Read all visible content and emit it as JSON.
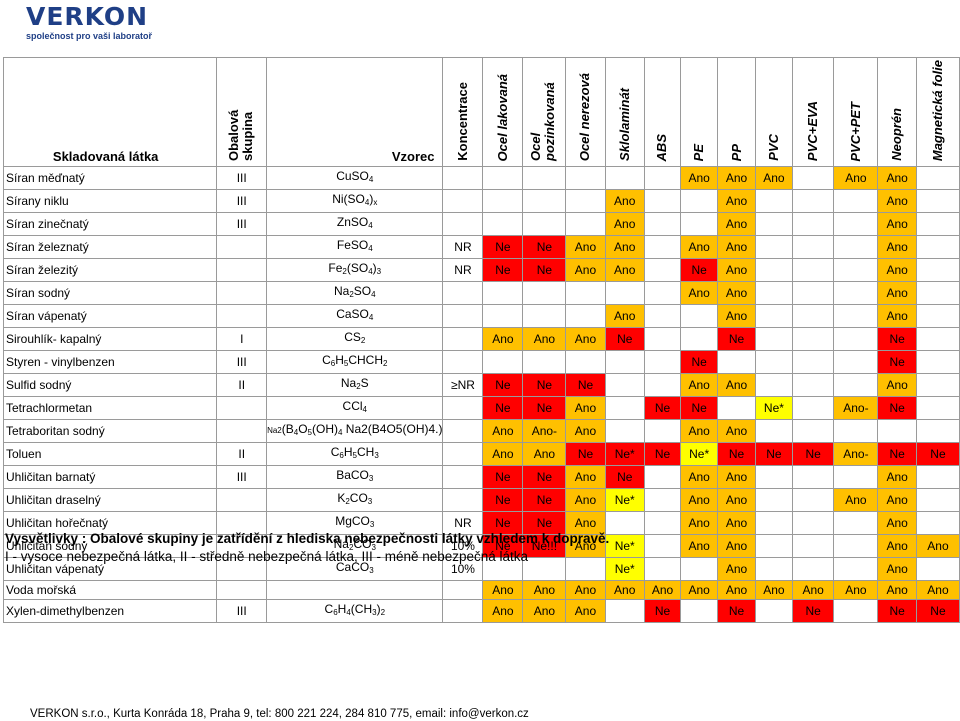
{
  "logo": {
    "name": "VERKON",
    "tagline": "společnost pro vaši laboratoř"
  },
  "headers": {
    "substance": "Skladovaná látka",
    "group": "Obalová skupina",
    "formula": "Vzorec",
    "conc": "Koncentrace",
    "materials": [
      "Ocel lakovaná",
      "Ocel pozinkovaná",
      "Ocel nerezová",
      "Sklolaminát",
      "ABS",
      "PE",
      "PP",
      "PVC",
      "PVC+EVA",
      "PVC+PET",
      "Neoprén",
      "Magnetická folie"
    ]
  },
  "rows": [
    {
      "name": "Síran měďnatý",
      "group": "III",
      "formula": "CuSO<sub>4</sub>",
      "conc": "",
      "cells": [
        "",
        "",
        "",
        "",
        "",
        "Ano",
        "Ano",
        "Ano",
        "",
        "Ano",
        "Ano",
        ""
      ]
    },
    {
      "name": "Sírany niklu",
      "group": "III",
      "formula": "Ni(SO<sub>4</sub>)<sub>x</sub>",
      "conc": "",
      "cells": [
        "",
        "",
        "",
        "Ano",
        "",
        "",
        "Ano",
        "",
        "",
        "",
        "Ano",
        ""
      ]
    },
    {
      "name": "Síran zinečnatý",
      "group": "III",
      "formula": "ZnSO<sub>4</sub>",
      "conc": "",
      "cells": [
        "",
        "",
        "",
        "Ano",
        "",
        "",
        "Ano",
        "",
        "",
        "",
        "Ano",
        ""
      ]
    },
    {
      "name": "Síran železnatý",
      "group": "",
      "formula": "FeSO<sub>4</sub>",
      "conc": "NR",
      "cells": [
        "Ne",
        "Ne",
        "Ano",
        "Ano",
        "",
        "Ano",
        "Ano",
        "",
        "",
        "",
        "Ano",
        ""
      ]
    },
    {
      "name": "Síran železitý",
      "group": "",
      "formula": "Fe<sub>2</sub>(SO<sub>4</sub>)<sub>3</sub>",
      "conc": "NR",
      "cells": [
        "Ne",
        "Ne",
        "Ano",
        "Ano",
        "",
        "Ne",
        "Ano",
        "",
        "",
        "",
        "Ano",
        ""
      ]
    },
    {
      "name": "Síran sodný",
      "group": "",
      "formula": "Na<sub>2</sub>SO<sub>4</sub>",
      "conc": "",
      "cells": [
        "",
        "",
        "",
        "",
        "",
        "Ano",
        "Ano",
        "",
        "",
        "",
        "Ano",
        ""
      ]
    },
    {
      "name": "Síran vápenatý",
      "group": "",
      "formula": "CaSO<sub>4</sub>",
      "conc": "",
      "cells": [
        "",
        "",
        "",
        "Ano",
        "",
        "",
        "Ano",
        "",
        "",
        "",
        "Ano",
        ""
      ]
    },
    {
      "name": "Sirouhlík- kapalný",
      "group": "I",
      "formula": "CS<sub>2</sub>",
      "conc": "",
      "cells": [
        "Ano",
        "Ano",
        "Ano",
        "Ne",
        "",
        "",
        "Ne",
        "",
        "",
        "",
        "Ne",
        ""
      ]
    },
    {
      "name": "Styren - vinylbenzen",
      "group": "III",
      "formula": "C<sub>6</sub>H<sub>5</sub>CHCH<sub>2</sub>",
      "conc": "",
      "cells": [
        "",
        "",
        "",
        "",
        "",
        "Ne",
        "",
        "",
        "",
        "",
        "Ne",
        ""
      ]
    },
    {
      "name": "Sulfid sodný",
      "group": "II",
      "formula": "Na<sub>2</sub>S",
      "conc": "≥NR",
      "cells": [
        "Ne",
        "Ne",
        "Ne",
        "",
        "",
        "Ano",
        "Ano",
        "",
        "",
        "",
        "Ano",
        ""
      ]
    },
    {
      "name": "Tetrachlormetan",
      "group": "",
      "formula": "CCl<sub>4</sub>",
      "conc": "",
      "cells": [
        "Ne",
        "Ne",
        "Ano",
        "",
        "Ne",
        "Ne",
        "",
        "Ne*",
        "",
        "Ano-",
        "Ne",
        ""
      ]
    },
    {
      "name": "Tetraboritan sodný",
      "group": "",
      "formula": "<span style='font-size:8px'>Na2</span>(B<sub>4</sub>O<sub>5</sub>(OH)<sub>4</sub> Na2(B4O5(OH)4.)",
      "conc": "",
      "cells": [
        "Ano",
        "Ano-",
        "Ano",
        "",
        "",
        "Ano",
        "Ano",
        "",
        "",
        "",
        "",
        ""
      ]
    },
    {
      "name": "Toluen",
      "group": "II",
      "formula": "C<sub>6</sub>H<sub>5</sub>CH<sub>3</sub>",
      "conc": "",
      "cells": [
        "Ano",
        "Ano",
        "Ne",
        "Ne*",
        "Ne",
        "Ne*",
        "Ne",
        "Ne",
        "Ne",
        "Ano-",
        "Ne",
        "Ne"
      ]
    },
    {
      "name": "Uhličitan barnatý",
      "group": "III",
      "formula": "BaCO<sub>3</sub>",
      "conc": "",
      "cells": [
        "Ne",
        "Ne",
        "Ano",
        "Ne",
        "",
        "Ano",
        "Ano",
        "",
        "",
        "",
        "Ano",
        ""
      ]
    },
    {
      "name": "Uhličitan draselný",
      "group": "",
      "formula": "K<sub>2</sub>CO<sub>3</sub>",
      "conc": "",
      "cells": [
        "Ne",
        "Ne",
        "Ano",
        "Ne*",
        "",
        "Ano",
        "Ano",
        "",
        "",
        "Ano",
        "Ano",
        ""
      ]
    },
    {
      "name": "Uhličitan hořečnatý",
      "group": "",
      "formula": "MgCO<sub>3</sub>",
      "conc": "NR",
      "cells": [
        "Ne",
        "Ne",
        "Ano",
        "",
        "",
        "Ano",
        "Ano",
        "",
        "",
        "",
        "Ano",
        ""
      ]
    },
    {
      "name": "Uhličitan sodný",
      "group": "",
      "formula": "Na<sub>2</sub>CO<sub>3</sub>",
      "conc": "10%",
      "cells": [
        "Ne",
        "Ne!!!",
        "Ano",
        "Ne*",
        "",
        "Ano",
        "Ano",
        "",
        "",
        "",
        "Ano",
        "Ano"
      ]
    },
    {
      "name": "Uhličitan vápenatý",
      "group": "",
      "formula": "CaCO<sub>3</sub>",
      "conc": "10%",
      "cells": [
        "",
        "",
        "",
        "Ne*",
        "",
        "",
        "Ano",
        "",
        "",
        "",
        "Ano",
        ""
      ]
    },
    {
      "name": "Voda mořská",
      "group": "",
      "formula": "",
      "conc": "",
      "cells": [
        "Ano",
        "Ano",
        "Ano",
        "Ano",
        "Ano",
        "Ano",
        "Ano",
        "Ano",
        "Ano",
        "Ano",
        "Ano",
        "Ano"
      ]
    },
    {
      "name": "Xylen-dimethylbenzen",
      "group": "III",
      "formula": "C<sub>6</sub>H<sub>4</sub>(CH<sub>3</sub>)<sub>2</sub>",
      "conc": "",
      "cells": [
        "Ano",
        "Ano",
        "Ano",
        "",
        "Ne",
        "",
        "Ne",
        "",
        "Ne",
        "",
        "Ne",
        "Ne"
      ]
    }
  ],
  "legend1": "Vysvětlivky : Obalové skupiny je zatřídění z hlediska nebezpečnosti látky vzhledem k dopravě.",
  "legend2": "I - vysoce nebezpečná látka, II - středně nebezpečná látka, III - méně nebezpečná látka",
  "footer": "VERKON s.r.o., Kurta Konráda 18, Praha 9, tel: 800 221 224, 284 810 775, email: info@verkon.cz",
  "colors": {
    "ano": "#ffc000",
    "ne": "#ff0000",
    "warn": "#ffff00"
  }
}
